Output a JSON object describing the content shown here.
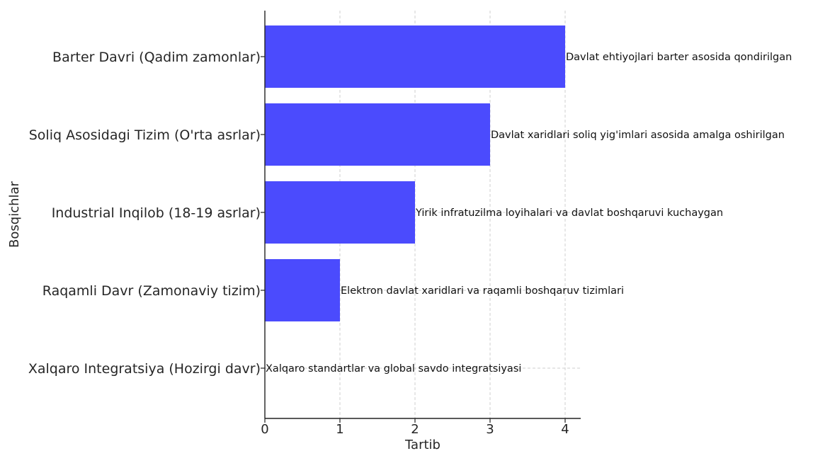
{
  "chart_data": {
    "type": "bar",
    "orientation": "horizontal",
    "categories": [
      "Barter Davri (Qadim zamonlar)",
      "Soliq Asosidagi Tizim (O'rta asrlar)",
      "Industrial Inqilob (18-19 asrlar)",
      "Raqamli Davr (Zamonaviy tizim)",
      "Xalqaro Integratsiya (Hozirgi davr)"
    ],
    "values": [
      4,
      3,
      2,
      1,
      0
    ],
    "annotations": [
      "Davlat ehtiyojlari barter asosida qondirilgan",
      "Davlat xaridlari soliq yig'imlari asosida amalga oshirilgan",
      "Yirik infratuzilma loyihalari va davlat boshqaruvi kuchaygan",
      "Elektron davlat xaridlari va raqamli boshqaruv tizimlari",
      "Xalqaro standartlar va global savdo integratsiyasi"
    ],
    "xlabel": "Tartib",
    "ylabel": "Bosqichlar",
    "xlim": [
      0,
      4.2
    ],
    "xticks": [
      "0",
      "1",
      "2",
      "3",
      "4"
    ],
    "grid": true,
    "bar_color": "#4b4bfd"
  }
}
